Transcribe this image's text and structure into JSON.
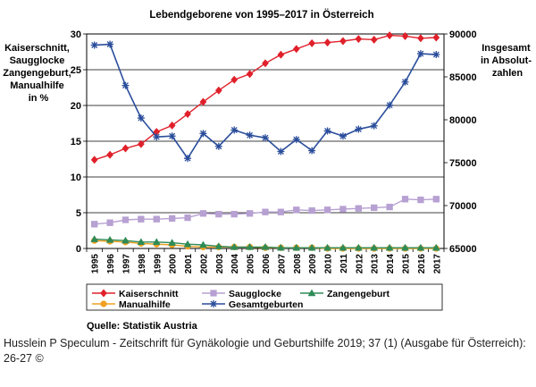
{
  "chart_data": {
    "type": "line",
    "title": "Lebendgeborene von 1995–2017 in Österreich",
    "ylabel_left": [
      "Kaiserschnitt,",
      "Saugglocke",
      "Zangengeburt,",
      "Manualhilfe",
      "in %"
    ],
    "ylabel_right": [
      "Insgesamt",
      "in Absolut-",
      "zahlen"
    ],
    "categories": [
      "1995",
      "1996",
      "1997",
      "1998",
      "1999",
      "2000",
      "2001",
      "2002",
      "2003",
      "2004",
      "2005",
      "2006",
      "2007",
      "2008",
      "2009",
      "2010",
      "2011",
      "2012",
      "2013",
      "2014",
      "2015",
      "2016",
      "2017"
    ],
    "ylim_left": [
      0,
      30
    ],
    "yticks_left": [
      0,
      5,
      10,
      15,
      20,
      25,
      30
    ],
    "ylim_right": [
      65000,
      90000
    ],
    "yticks_right": [
      65000,
      70000,
      75000,
      80000,
      85000,
      90000
    ],
    "series": [
      {
        "name": "Kaiserschnitt",
        "axis": "left",
        "color": "#e0202a",
        "marker": "diamond",
        "values": [
          12.4,
          13.1,
          14.0,
          14.6,
          16.3,
          17.2,
          18.8,
          20.5,
          22.1,
          23.6,
          24.4,
          25.9,
          27.1,
          27.9,
          28.7,
          28.8,
          29.0,
          29.3,
          29.2,
          29.8,
          29.7,
          29.4,
          29.5
        ]
      },
      {
        "name": "Saugglocke",
        "axis": "left",
        "color": "#b7a0d2",
        "marker": "square",
        "values": [
          3.4,
          3.6,
          4.0,
          4.1,
          4.1,
          4.2,
          4.3,
          4.9,
          4.8,
          4.8,
          4.9,
          5.1,
          5.1,
          5.4,
          5.3,
          5.4,
          5.5,
          5.6,
          5.7,
          5.8,
          6.9,
          6.8,
          6.9
        ]
      },
      {
        "name": "Zangengeburt",
        "axis": "left",
        "color": "#2e8b57",
        "marker": "triangle",
        "values": [
          1.3,
          1.2,
          1.1,
          0.9,
          0.9,
          0.8,
          0.6,
          0.5,
          0.3,
          0.2,
          0.2,
          0.2,
          0.1,
          0.1,
          0.1,
          0.1,
          0.1,
          0.1,
          0.1,
          0.1,
          0.1,
          0.1,
          0.1
        ]
      },
      {
        "name": "Manualhilfe",
        "axis": "left",
        "color": "#f0a020",
        "marker": "circle",
        "values": [
          1.1,
          1.0,
          0.9,
          0.7,
          0.6,
          0.5,
          0.3,
          0.2,
          0.2,
          0.2,
          0.2,
          0.1,
          0.1,
          0.1,
          0.1,
          0.0,
          0.0,
          0.0,
          0.0,
          0.0,
          0.0,
          0.0,
          0.0
        ]
      },
      {
        "name": "Gesamtgeburten",
        "axis": "right",
        "color": "#2a4d9b",
        "marker": "star",
        "values": [
          88700,
          88800,
          84000,
          80200,
          78000,
          78100,
          75500,
          78400,
          76900,
          78800,
          78200,
          77900,
          76300,
          77700,
          76400,
          78700,
          78100,
          78900,
          79300,
          81700,
          84400,
          87700,
          87600
        ]
      }
    ],
    "legend_order": [
      "Kaiserschnitt",
      "Saugglocke",
      "Zangengeburt",
      "Manualhilfe",
      "Gesamtgeburten"
    ],
    "legend_placement": "bottom",
    "grid": true
  },
  "source_note": "Quelle: Statistik Austria",
  "caption": "Husslein P Speculum - Zeitschrift für Gynäkologie und Geburtshilfe 2019; 37 (1) (Ausgabe für Österreich): 26-27 ©"
}
